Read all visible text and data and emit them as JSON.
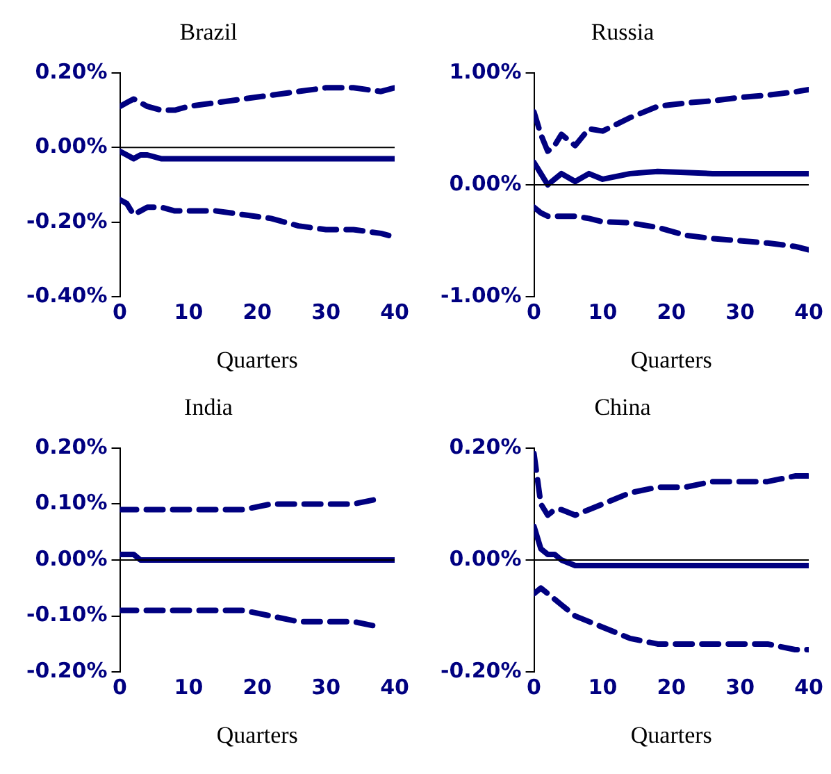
{
  "chart_data": [
    {
      "type": "line",
      "title": "Brazil",
      "xlabel": "Quarters",
      "x": [
        0,
        1,
        2,
        3,
        4,
        6,
        8,
        10,
        14,
        18,
        22,
        26,
        30,
        34,
        38,
        40
      ],
      "xlim": [
        0,
        40
      ],
      "xticks": [
        0,
        10,
        20,
        30,
        40
      ],
      "ylim": [
        -0.4,
        0.2
      ],
      "yticks": [
        {
          "value": -0.4,
          "label": "-0.40%"
        },
        {
          "value": -0.2,
          "label": "-0.20%"
        },
        {
          "value": 0,
          "label": "0.00%"
        },
        {
          "value": 0.2,
          "label": "0.20%"
        }
      ],
      "grid": false,
      "legend": false,
      "marker": "none",
      "ref_lines": [
        {
          "axis": "y",
          "value": 0,
          "color": "#000000"
        }
      ],
      "series": [
        {
          "color": "#000080",
          "line_style": "solid",
          "values": [
            -0.01,
            -0.02,
            -0.03,
            -0.02,
            -0.02,
            -0.03,
            -0.03,
            -0.03,
            -0.03,
            -0.03,
            -0.03,
            -0.03,
            -0.03,
            -0.03,
            -0.03,
            -0.03
          ]
        },
        {
          "color": "#000080",
          "line_style": "dashed",
          "values": [
            0.11,
            0.12,
            0.13,
            0.12,
            0.11,
            0.1,
            0.1,
            0.11,
            0.12,
            0.13,
            0.14,
            0.15,
            0.16,
            0.16,
            0.15,
            0.16
          ]
        },
        {
          "color": "#000080",
          "line_style": "dashed",
          "values": [
            -0.14,
            -0.15,
            -0.18,
            -0.17,
            -0.16,
            -0.16,
            -0.17,
            -0.17,
            -0.17,
            -0.18,
            -0.19,
            -0.21,
            -0.22,
            -0.22,
            -0.23,
            -0.24
          ]
        }
      ]
    },
    {
      "type": "line",
      "title": "Russia",
      "xlabel": "Quarters",
      "x": [
        0,
        1,
        2,
        3,
        4,
        6,
        8,
        10,
        14,
        18,
        22,
        26,
        30,
        34,
        38,
        40
      ],
      "xlim": [
        0,
        40
      ],
      "xticks": [
        0,
        10,
        20,
        30,
        40
      ],
      "ylim": [
        -1,
        1
      ],
      "yticks": [
        {
          "value": -1,
          "label": "-1.00%"
        },
        {
          "value": 0,
          "label": "0.00%"
        },
        {
          "value": 1,
          "label": "1.00%"
        }
      ],
      "grid": false,
      "legend": false,
      "marker": "none",
      "ref_lines": [
        {
          "axis": "y",
          "value": 0,
          "color": "#000000"
        }
      ],
      "series": [
        {
          "color": "#000080",
          "line_style": "solid",
          "values": [
            0.2,
            0.1,
            0.0,
            0.05,
            0.1,
            0.03,
            0.1,
            0.05,
            0.1,
            0.12,
            0.11,
            0.1,
            0.1,
            0.1,
            0.1,
            0.1
          ]
        },
        {
          "color": "#000080",
          "line_style": "dashed",
          "values": [
            0.65,
            0.45,
            0.3,
            0.35,
            0.45,
            0.35,
            0.5,
            0.48,
            0.6,
            0.7,
            0.73,
            0.75,
            0.78,
            0.8,
            0.83,
            0.85
          ]
        },
        {
          "color": "#000080",
          "line_style": "dashed",
          "values": [
            -0.2,
            -0.25,
            -0.28,
            -0.28,
            -0.28,
            -0.28,
            -0.3,
            -0.33,
            -0.34,
            -0.38,
            -0.45,
            -0.48,
            -0.5,
            -0.52,
            -0.55,
            -0.58
          ]
        }
      ]
    },
    {
      "type": "line",
      "title": "India",
      "xlabel": "Quarters",
      "x": [
        0,
        1,
        2,
        3,
        4,
        6,
        8,
        10,
        14,
        18,
        22,
        26,
        30,
        34,
        38,
        40
      ],
      "xlim": [
        0,
        40
      ],
      "xticks": [
        0,
        10,
        20,
        30,
        40
      ],
      "ylim": [
        -0.2,
        0.2
      ],
      "yticks": [
        {
          "value": -0.2,
          "label": "-0.20%"
        },
        {
          "value": -0.1,
          "label": "-0.10%"
        },
        {
          "value": 0,
          "label": "0.00%"
        },
        {
          "value": 0.1,
          "label": "0.10%"
        },
        {
          "value": 0.2,
          "label": "0.20%"
        }
      ],
      "grid": false,
      "legend": false,
      "marker": "none",
      "ref_lines": [
        {
          "axis": "y",
          "value": 0,
          "color": "#000000"
        }
      ],
      "series": [
        {
          "color": "#000080",
          "line_style": "solid",
          "values": [
            0.01,
            0.01,
            0.01,
            0.0,
            0.0,
            0.0,
            0.0,
            0.0,
            0.0,
            0.0,
            0.0,
            0.0,
            0.0,
            0.0,
            0.0,
            0.0
          ]
        },
        {
          "color": "#000080",
          "line_style": "dashed",
          "values": [
            0.09,
            0.09,
            0.09,
            0.09,
            0.09,
            0.09,
            0.09,
            0.09,
            0.09,
            0.09,
            0.1,
            0.1,
            0.1,
            0.1,
            0.11,
            null
          ]
        },
        {
          "color": "#000080",
          "line_style": "dashed",
          "values": [
            -0.09,
            -0.09,
            -0.09,
            -0.09,
            -0.09,
            -0.09,
            -0.09,
            -0.09,
            -0.09,
            -0.09,
            -0.1,
            -0.11,
            -0.11,
            -0.11,
            -0.12,
            null
          ]
        }
      ]
    },
    {
      "type": "line",
      "title": "China",
      "xlabel": "Quarters",
      "x": [
        0,
        1,
        2,
        3,
        4,
        6,
        8,
        10,
        14,
        18,
        22,
        26,
        30,
        34,
        38,
        40
      ],
      "xlim": [
        0,
        40
      ],
      "xticks": [
        0,
        10,
        20,
        30,
        40
      ],
      "ylim": [
        -0.2,
        0.2
      ],
      "yticks": [
        {
          "value": -0.2,
          "label": "-0.20%"
        },
        {
          "value": 0,
          "label": "0.00%"
        },
        {
          "value": 0.2,
          "label": "0.20%"
        }
      ],
      "grid": false,
      "legend": false,
      "marker": "none",
      "ref_lines": [
        {
          "axis": "y",
          "value": 0,
          "color": "#000000"
        }
      ],
      "series": [
        {
          "color": "#000080",
          "line_style": "solid",
          "values": [
            0.06,
            0.02,
            0.01,
            0.01,
            0.0,
            -0.01,
            -0.01,
            -0.01,
            -0.01,
            -0.01,
            -0.01,
            -0.01,
            -0.01,
            -0.01,
            -0.01,
            -0.01
          ]
        },
        {
          "color": "#000080",
          "line_style": "dashed",
          "values": [
            0.19,
            0.1,
            0.08,
            0.09,
            0.09,
            0.08,
            0.09,
            0.1,
            0.12,
            0.13,
            0.13,
            0.14,
            0.14,
            0.14,
            0.15,
            0.15
          ]
        },
        {
          "color": "#000080",
          "line_style": "dashed",
          "values": [
            -0.06,
            -0.05,
            -0.06,
            -0.07,
            -0.08,
            -0.1,
            -0.11,
            -0.12,
            -0.14,
            -0.15,
            -0.15,
            -0.15,
            -0.15,
            -0.15,
            -0.16,
            -0.16
          ]
        }
      ]
    }
  ]
}
